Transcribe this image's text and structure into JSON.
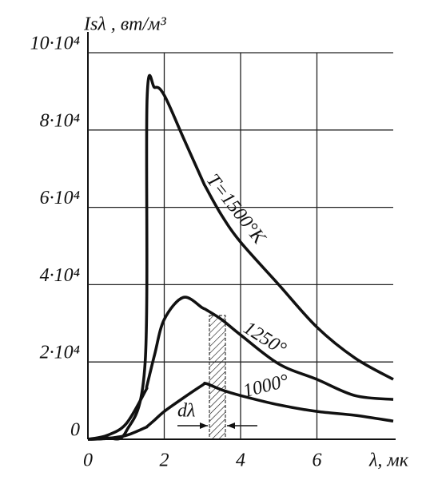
{
  "chart_data": {
    "type": "line",
    "title": "Isλ , вт/м³",
    "x_label": "λ, мк",
    "x": [
      0,
      0.5,
      1,
      1.5,
      1.55,
      1.75,
      2,
      2.5,
      3,
      3.1,
      3.5,
      4,
      5,
      6,
      7,
      8
    ],
    "series": [
      {
        "name": "T=1500°K",
        "color": "#111111",
        "values": [
          0,
          300,
          2000,
          20000,
          88000,
          91000,
          89000,
          78000,
          67000,
          65000,
          58000,
          51000,
          40000,
          29000,
          21000,
          15500
        ]
      },
      {
        "name": "1250°",
        "color": "#111111",
        "values": [
          0,
          1000,
          4000,
          12400,
          14000,
          22000,
          31000,
          36700,
          34000,
          33500,
          31000,
          27000,
          19500,
          15500,
          11300,
          10300
        ]
      },
      {
        "name": "1000°",
        "color": "#111111",
        "values": [
          0,
          200,
          1000,
          3000,
          3300,
          5000,
          7200,
          10700,
          14000,
          14400,
          12800,
          11300,
          8900,
          7200,
          6200,
          4700
        ]
      }
    ],
    "annotations": [
      "dλ"
    ],
    "xlim": [
      0,
      8
    ],
    "xticks": [
      0,
      2,
      4,
      6
    ],
    "ylim": [
      0,
      100000
    ],
    "yticks": [
      0,
      {
        "value": 20000,
        "label": "2·10⁴"
      },
      {
        "value": 40000,
        "label": "4·10⁴"
      },
      {
        "value": 60000,
        "label": "6·10⁴"
      },
      {
        "value": 80000,
        "label": "8·10⁴"
      },
      {
        "value": 100000,
        "label": "10·10⁴"
      }
    ],
    "grid": true
  }
}
